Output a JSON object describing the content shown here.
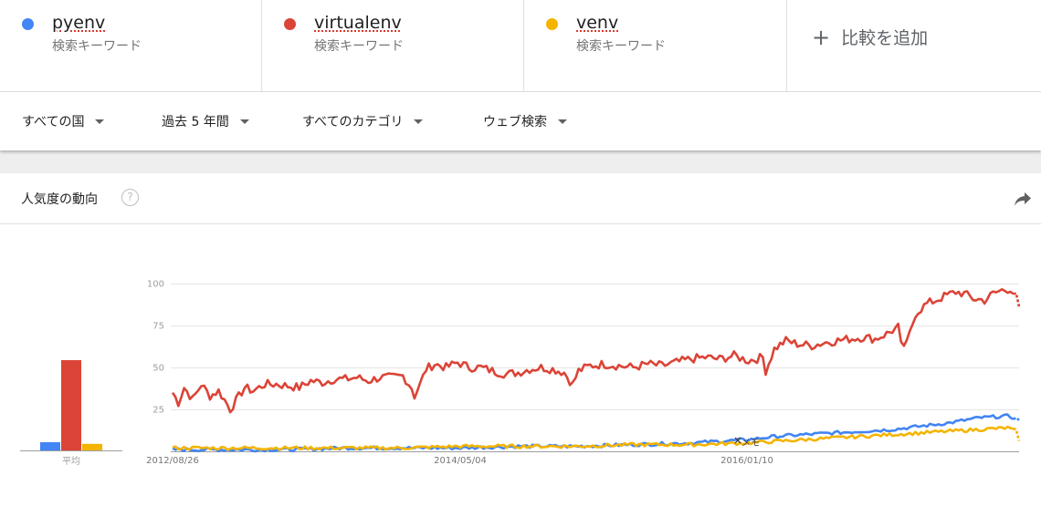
{
  "terms": [
    {
      "name": "pyenv",
      "sub": "検索キーワード",
      "color": "#4285f4"
    },
    {
      "name": "virtualenv",
      "sub": "検索キーワード",
      "color": "#db4437"
    },
    {
      "name": "venv",
      "sub": "検索キーワード",
      "color": "#f4b400"
    }
  ],
  "add_compare": "比較を追加",
  "filters": {
    "country": "すべての国",
    "period": "過去 5 年間",
    "category": "すべてのカテゴリ",
    "search_type": "ウェブ検索"
  },
  "section": {
    "title": "人気度の動向",
    "help_icon": "help-circle-icon",
    "share_icon": "share-arrow-icon"
  },
  "average_label": "平均",
  "memo_label": "メモ",
  "chart_data": {
    "type": "line",
    "y_ticks": [
      25,
      50,
      75,
      100
    ],
    "ylim": [
      0,
      100
    ],
    "grid": true,
    "x_tick_labels": [
      "2012/08/26",
      "2014/05/04",
      "2016/01/10"
    ],
    "averages": [
      {
        "name": "pyenv",
        "value": 5
      },
      {
        "name": "virtualenv",
        "value": 55
      },
      {
        "name": "venv",
        "value": 4
      }
    ],
    "series": [
      {
        "name": "virtualenv",
        "color": "#db4437",
        "anchors": [
          [
            0,
            35
          ],
          [
            2,
            29
          ],
          [
            4,
            38
          ],
          [
            7,
            31
          ],
          [
            10,
            40
          ],
          [
            13,
            33
          ],
          [
            16,
            36
          ],
          [
            19,
            28
          ],
          [
            20,
            25
          ],
          [
            22,
            30
          ],
          [
            25,
            38
          ],
          [
            28,
            36
          ],
          [
            32,
            40
          ],
          [
            36,
            40
          ],
          [
            40,
            39
          ],
          [
            44,
            38
          ],
          [
            48,
            42
          ],
          [
            52,
            41
          ],
          [
            56,
            43
          ],
          [
            60,
            43
          ],
          [
            64,
            44
          ],
          [
            68,
            42
          ],
          [
            72,
            44
          ],
          [
            76,
            44
          ],
          [
            80,
            45
          ],
          [
            83,
            38
          ],
          [
            84,
            33
          ],
          [
            86,
            40
          ],
          [
            88,
            49
          ],
          [
            91,
            52
          ],
          [
            95,
            50
          ],
          [
            99,
            53
          ],
          [
            103,
            50
          ],
          [
            107,
            50
          ],
          [
            111,
            48
          ],
          [
            116,
            46
          ],
          [
            120,
            47
          ],
          [
            124,
            49
          ],
          [
            128,
            50
          ],
          [
            132,
            49
          ],
          [
            136,
            47
          ],
          [
            138,
            42
          ],
          [
            139,
            40
          ],
          [
            141,
            48
          ],
          [
            145,
            51
          ],
          [
            150,
            52
          ],
          [
            155,
            51
          ],
          [
            160,
            50
          ],
          [
            165,
            52
          ],
          [
            170,
            51
          ],
          [
            175,
            53
          ],
          [
            180,
            55
          ],
          [
            185,
            56
          ],
          [
            190,
            55
          ],
          [
            195,
            57
          ],
          [
            200,
            54
          ],
          [
            205,
            56
          ],
          [
            206,
            48
          ],
          [
            209,
            61
          ],
          [
            213,
            66
          ],
          [
            217,
            64
          ],
          [
            222,
            63
          ],
          [
            227,
            65
          ],
          [
            231,
            66
          ],
          [
            235,
            67
          ],
          [
            240,
            68
          ],
          [
            244,
            67
          ],
          [
            248,
            70
          ],
          [
            250,
            72
          ],
          [
            252,
            74
          ],
          [
            253,
            63
          ],
          [
            255,
            64
          ],
          [
            258,
            82
          ],
          [
            262,
            88
          ],
          [
            265,
            90
          ],
          [
            269,
            93
          ],
          [
            272,
            95
          ],
          [
            275,
            94
          ],
          [
            278,
            91
          ],
          [
            282,
            90
          ],
          [
            285,
            94
          ],
          [
            288,
            96
          ],
          [
            291,
            97
          ],
          [
            293,
            92
          ],
          [
            294,
            85
          ]
        ]
      },
      {
        "name": "pyenv",
        "color": "#4285f4",
        "anchors": [
          [
            0,
            1
          ],
          [
            20,
            1
          ],
          [
            40,
            1
          ],
          [
            60,
            2
          ],
          [
            80,
            2
          ],
          [
            100,
            2
          ],
          [
            120,
            3
          ],
          [
            140,
            3
          ],
          [
            160,
            4
          ],
          [
            180,
            5
          ],
          [
            190,
            6
          ],
          [
            200,
            7
          ],
          [
            205,
            8
          ],
          [
            210,
            9
          ],
          [
            220,
            10
          ],
          [
            230,
            11
          ],
          [
            240,
            12
          ],
          [
            250,
            13
          ],
          [
            260,
            15
          ],
          [
            270,
            17
          ],
          [
            280,
            20
          ],
          [
            290,
            21
          ],
          [
            294,
            19
          ]
        ]
      },
      {
        "name": "venv",
        "color": "#f4b400",
        "anchors": [
          [
            0,
            2
          ],
          [
            20,
            2
          ],
          [
            40,
            2
          ],
          [
            60,
            2
          ],
          [
            80,
            2
          ],
          [
            100,
            3
          ],
          [
            120,
            3
          ],
          [
            140,
            3
          ],
          [
            160,
            4
          ],
          [
            180,
            4
          ],
          [
            200,
            5
          ],
          [
            210,
            6
          ],
          [
            220,
            7
          ],
          [
            230,
            8
          ],
          [
            240,
            9
          ],
          [
            250,
            10
          ],
          [
            260,
            11
          ],
          [
            270,
            12
          ],
          [
            280,
            13
          ],
          [
            290,
            14
          ],
          [
            293,
            12
          ],
          [
            294,
            7
          ]
        ]
      }
    ]
  }
}
